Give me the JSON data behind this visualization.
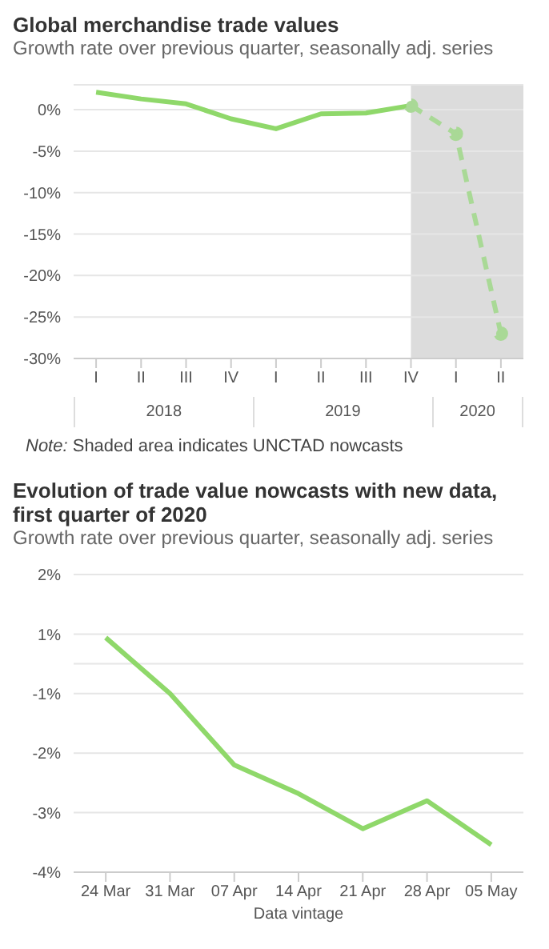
{
  "chart_data": [
    {
      "type": "line",
      "title": "Global merchandise trade values",
      "subtitle": "Growth rate over previous quarter, seasonally adj. series",
      "categories": [
        "I",
        "II",
        "III",
        "IV",
        "I",
        "II",
        "III",
        "IV",
        "I",
        "II"
      ],
      "series": [
        {
          "color": "#8fd86a",
          "values": [
            2.1,
            1.3,
            0.7,
            -1.1,
            -2.3,
            -0.5,
            -0.4,
            0.5,
            null,
            null
          ],
          "marker": "none",
          "line_style": "solid"
        },
        {
          "color": "#a9d996",
          "values": [
            null,
            null,
            null,
            null,
            null,
            null,
            null,
            0.5,
            -2.9,
            -27.0
          ],
          "marker": "circle",
          "line_style": "dashed"
        }
      ],
      "ylim": [
        -30,
        3
      ],
      "yticks": [
        {
          "value": 0,
          "label": "0%"
        },
        {
          "value": -5,
          "label": "-5%"
        },
        {
          "value": -10,
          "label": "-10%"
        },
        {
          "value": -15,
          "label": "-15%"
        },
        {
          "value": -20,
          "label": "-20%"
        },
        {
          "value": -25,
          "label": "-25%"
        },
        {
          "value": -30,
          "label": "-30%"
        }
      ],
      "grid": "y",
      "legend": false,
      "annotations": [
        "2018",
        "2019",
        "2020",
        "Note: Shaded area indicates UNCTAD nowcasts"
      ]
    },
    {
      "type": "line",
      "title": "Evolution of trade value nowcasts with new data, first quarter of 2020",
      "subtitle": "Growth rate over previous quarter, seasonally adj. series",
      "xlabel": "Data vintage",
      "categories": [
        "24 Mar",
        "31 Mar",
        "07 Apr",
        "14 Apr",
        "21 Apr",
        "28 Apr",
        "05 May"
      ],
      "series": [
        {
          "color": "#8fd86a",
          "values": [
            0.44,
            -0.5,
            -1.7,
            -2.18,
            -2.77,
            -2.3,
            -3.04
          ],
          "marker": "none",
          "line_style": "solid"
        }
      ],
      "ylim": [
        -3.5,
        1.5
      ],
      "yticks": [
        {
          "value": 1.5,
          "label": "2%"
        },
        {
          "value": 0.5,
          "label": "1%"
        },
        {
          "value": 0,
          "label": null
        },
        {
          "value": -0.5,
          "label": "-1%"
        },
        {
          "value": -1.5,
          "label": "-2%"
        },
        {
          "value": -2.5,
          "label": "-3%"
        },
        {
          "value": -3.5,
          "label": "-4%"
        }
      ],
      "grid": "y",
      "legend": false
    }
  ]
}
